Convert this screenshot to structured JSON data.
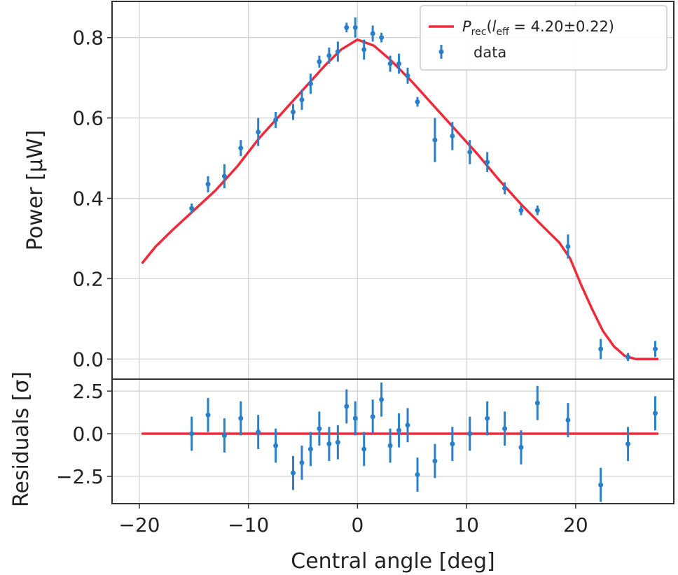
{
  "chart_data": [
    {
      "type": "scatter",
      "panel": "main",
      "xlim": [
        -22.5,
        29
      ],
      "ylim": [
        -0.05,
        0.89
      ],
      "ylabel": "Power [μW]",
      "grid": true,
      "xticks": [
        -20,
        -10,
        0,
        10,
        20
      ],
      "yticks": [
        {
          "value": 0.0,
          "label": "0.0"
        },
        {
          "value": 0.2,
          "label": "0.2"
        },
        {
          "value": 0.4,
          "label": "0.4"
        },
        {
          "value": 0.6,
          "label": "0.6"
        },
        {
          "value": 0.8,
          "label": "0.8"
        }
      ],
      "legend": {
        "placement": "top-right",
        "entries": [
          {
            "series": "model",
            "math": "P",
            "sub": "rec",
            "paren": "(",
            "math2": "l",
            "sub2": "eff",
            "rest": " = 4.20±0.22)"
          },
          {
            "series": "data",
            "text": "data"
          }
        ]
      },
      "series": [
        {
          "name": "P_rec(l_eff = 4.20±0.22)",
          "kind": "line",
          "color": "#ee2b3b",
          "x": [
            -19.7,
            -18.5,
            -17,
            -15,
            -13,
            -11,
            -9,
            -7,
            -5,
            -3,
            -1.5,
            0,
            1.5,
            3,
            5,
            7,
            9,
            11,
            13,
            15,
            17,
            18.5,
            19.5,
            20.5,
            21.5,
            22.5,
            23.5,
            24.5,
            25.5,
            26.5,
            27.5
          ],
          "y": [
            0.24,
            0.28,
            0.32,
            0.37,
            0.42,
            0.48,
            0.55,
            0.61,
            0.67,
            0.73,
            0.77,
            0.795,
            0.78,
            0.745,
            0.69,
            0.63,
            0.57,
            0.51,
            0.445,
            0.385,
            0.33,
            0.29,
            0.25,
            0.185,
            0.125,
            0.07,
            0.032,
            0.008,
            0.0,
            0.0,
            0.0
          ]
        },
        {
          "name": "data",
          "kind": "errorbar",
          "color": "#2a7fc9",
          "x": [
            -15.2,
            -13.7,
            -12.2,
            -10.7,
            -9.1,
            -7.5,
            -5.9,
            -5.1,
            -4.3,
            -3.5,
            -2.6,
            -1.8,
            -1.0,
            -0.2,
            0.6,
            1.4,
            2.2,
            3.0,
            3.8,
            4.6,
            5.5,
            7.1,
            8.7,
            10.3,
            11.9,
            13.5,
            15.0,
            16.5,
            19.3,
            22.3,
            24.8,
            27.3
          ],
          "y": [
            0.375,
            0.435,
            0.455,
            0.525,
            0.565,
            0.595,
            0.615,
            0.645,
            0.685,
            0.74,
            0.755,
            0.765,
            0.825,
            0.825,
            0.77,
            0.81,
            0.8,
            0.735,
            0.735,
            0.705,
            0.64,
            0.545,
            0.555,
            0.515,
            0.49,
            0.425,
            0.37,
            0.37,
            0.28,
            0.025,
            0.005,
            0.025
          ],
          "err": [
            0.012,
            0.02,
            0.03,
            0.02,
            0.035,
            0.02,
            0.02,
            0.025,
            0.025,
            0.015,
            0.02,
            0.025,
            0.012,
            0.025,
            0.025,
            0.02,
            0.012,
            0.02,
            0.025,
            0.02,
            0.012,
            0.055,
            0.035,
            0.03,
            0.025,
            0.015,
            0.012,
            0.012,
            0.03,
            0.025,
            0.01,
            0.02
          ]
        }
      ]
    },
    {
      "type": "scatter",
      "panel": "residuals",
      "xlim": [
        -22.5,
        29
      ],
      "ylim": [
        -4.1,
        3.2
      ],
      "xlabel": "Central angle [deg]",
      "ylabel": "Residuals [σ]",
      "grid": true,
      "xticks": [
        {
          "value": -20,
          "label": "−20"
        },
        {
          "value": -10,
          "label": "−10"
        },
        {
          "value": 0,
          "label": "0"
        },
        {
          "value": 10,
          "label": "10"
        },
        {
          "value": 20,
          "label": "20"
        }
      ],
      "yticks": [
        {
          "value": 2.5,
          "label": "2.5"
        },
        {
          "value": 0.0,
          "label": "0.0"
        },
        {
          "value": -2.5,
          "label": "−2.5"
        }
      ],
      "series": [
        {
          "kind": "line",
          "color": "#ee2b3b",
          "x": [
            -19.7,
            27.5
          ],
          "y": [
            0,
            0
          ]
        },
        {
          "kind": "errorbar",
          "color": "#2a7fc9",
          "x": [
            -15.2,
            -13.7,
            -12.2,
            -10.7,
            -9.1,
            -7.5,
            -5.9,
            -5.1,
            -4.3,
            -3.5,
            -2.6,
            -1.8,
            -1.0,
            -0.2,
            0.6,
            1.4,
            2.2,
            3.0,
            3.8,
            4.6,
            5.5,
            7.1,
            8.7,
            10.3,
            11.9,
            13.5,
            15.0,
            16.5,
            19.3,
            22.3,
            24.8,
            27.3
          ],
          "y": [
            0.0,
            1.1,
            -0.1,
            0.9,
            0.1,
            -0.7,
            -2.3,
            -1.7,
            -0.9,
            0.3,
            -0.6,
            -0.5,
            1.6,
            0.9,
            -0.9,
            1.0,
            2.0,
            -0.7,
            0.2,
            0.5,
            -2.4,
            -1.6,
            -0.6,
            0.0,
            0.9,
            0.3,
            -0.8,
            1.8,
            0.8,
            -3.0,
            -0.6,
            1.2
          ],
          "err": [
            1,
            1,
            1,
            1,
            1,
            1,
            1,
            1,
            1,
            1,
            1,
            1,
            1,
            1,
            1,
            1,
            1,
            1,
            1,
            1,
            1,
            1,
            1,
            1,
            1,
            1,
            1,
            1,
            1,
            1,
            1,
            1
          ]
        }
      ]
    }
  ]
}
